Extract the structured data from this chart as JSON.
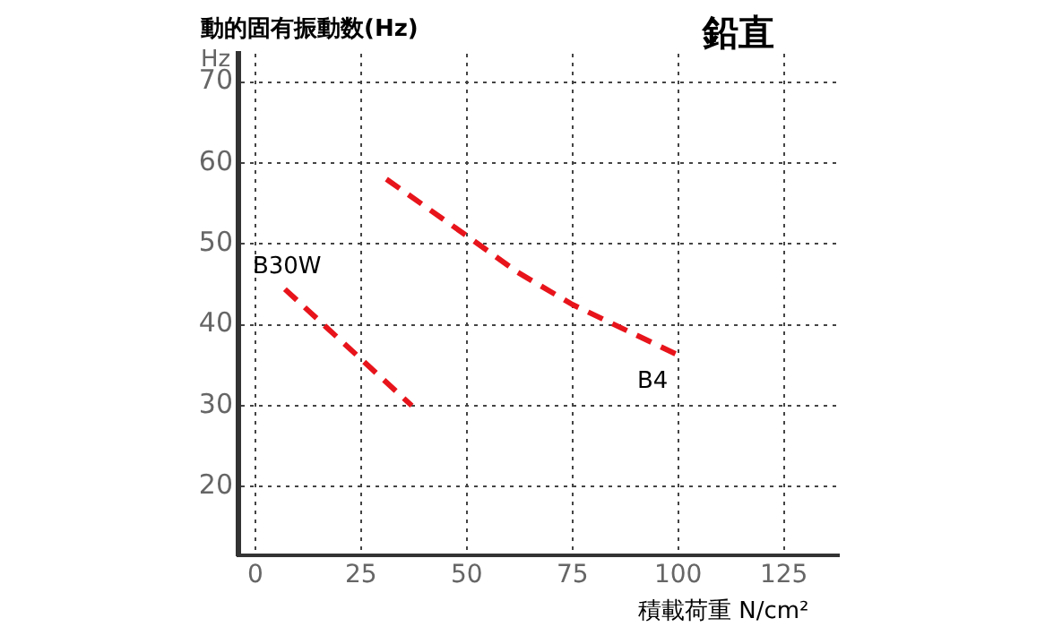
{
  "chart_data": {
    "type": "line",
    "title": "鉛直",
    "ylabel": "動的固有振動数(Hz)",
    "xlabel": "積載荷重 N/cm²",
    "annotations": [
      "Hz"
    ],
    "xlim": [
      -4,
      138
    ],
    "xticks": [
      0,
      25,
      50,
      75,
      100,
      125
    ],
    "ylim": [
      11.5,
      73.5
    ],
    "yticks": [
      20,
      30,
      40,
      50,
      60,
      70
    ],
    "grid": true,
    "legend": false,
    "marker": "none",
    "line_style": "dashed",
    "series": [
      {
        "name": "B30W",
        "color": "#e8141b",
        "x": [
          7,
          37
        ],
        "values": [
          44.4,
          30
        ]
      },
      {
        "name": "B4",
        "color": "#e8141b",
        "x": [
          31,
          50,
          62,
          75,
          101
        ],
        "values": [
          58,
          51,
          46.5,
          42.5,
          36
        ]
      }
    ]
  }
}
